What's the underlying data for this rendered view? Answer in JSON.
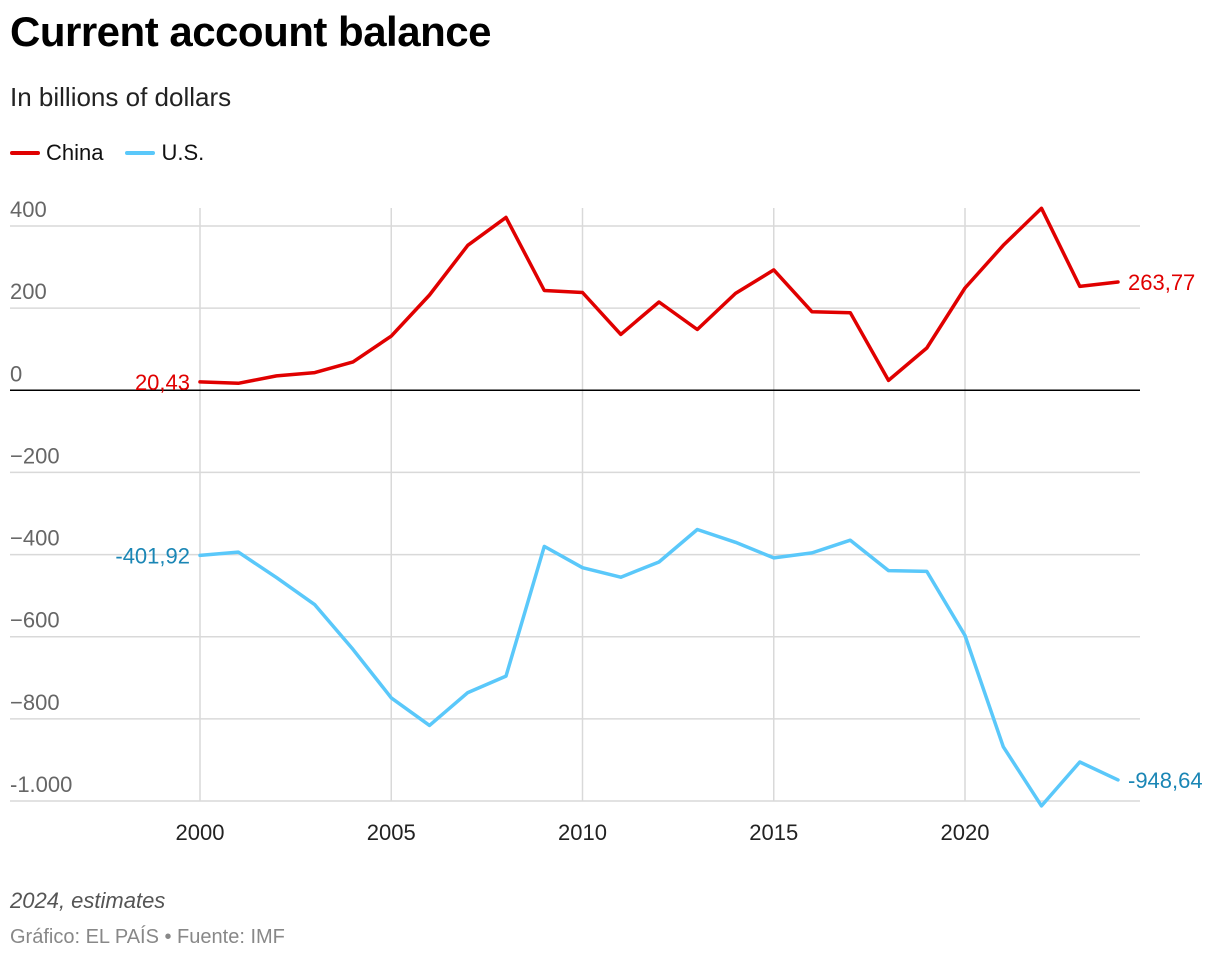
{
  "header": {
    "title": "Current account balance",
    "subtitle": "In billions of dollars"
  },
  "footer": {
    "note": "2024, estimates",
    "credit": "Gráfico: EL PAÍS • Fuente: IMF"
  },
  "colors": {
    "china": "#e00000",
    "us": "#5ac8fa",
    "us_label": "#1a86b5",
    "grid": "#d9d9d9",
    "zero": "#000000",
    "tick": "#666666"
  },
  "chart_data": {
    "type": "line",
    "title": "Current account balance",
    "subtitle": "In billions of dollars",
    "xlabel": "",
    "ylabel": "",
    "xlim": [
      1995,
      2024.5
    ],
    "ylim": [
      -1000,
      440
    ],
    "y_ticks": [
      400,
      200,
      0,
      -200,
      -400,
      -600,
      -800,
      -1000
    ],
    "y_tick_labels": [
      "400",
      "200",
      "0",
      "−200",
      "−400",
      "−600",
      "−800",
      "-1.000"
    ],
    "x_ticks": [
      2000,
      2005,
      2010,
      2015,
      2020
    ],
    "x_tick_labels": [
      "2000",
      "2005",
      "2010",
      "2015",
      "2020"
    ],
    "grid": true,
    "legend_position": "top-left",
    "x": [
      2000,
      2001,
      2002,
      2003,
      2004,
      2005,
      2006,
      2007,
      2008,
      2009,
      2010,
      2011,
      2012,
      2013,
      2014,
      2015,
      2016,
      2017,
      2018,
      2019,
      2020,
      2021,
      2022,
      2023,
      2024
    ],
    "series": [
      {
        "name": "China",
        "key": "china",
        "values": [
          20.43,
          17,
          35,
          43,
          69,
          132,
          232,
          353,
          421,
          243,
          238,
          136,
          215,
          148,
          236,
          293,
          191,
          189,
          24,
          103,
          249,
          353,
          443,
          253,
          263.77
        ],
        "start_label": "20,43",
        "end_label": "263,77"
      },
      {
        "name": "U.S.",
        "key": "us",
        "values": [
          -401.92,
          -394,
          -456,
          -522,
          -631,
          -749,
          -816,
          -736,
          -696,
          -380,
          -432,
          -455,
          -418,
          -339,
          -370,
          -408,
          -396,
          -365,
          -439,
          -441,
          -597,
          -868,
          -1012,
          -905,
          -948.64
        ],
        "start_label": "-401,92",
        "end_label": "-948,64"
      }
    ]
  }
}
